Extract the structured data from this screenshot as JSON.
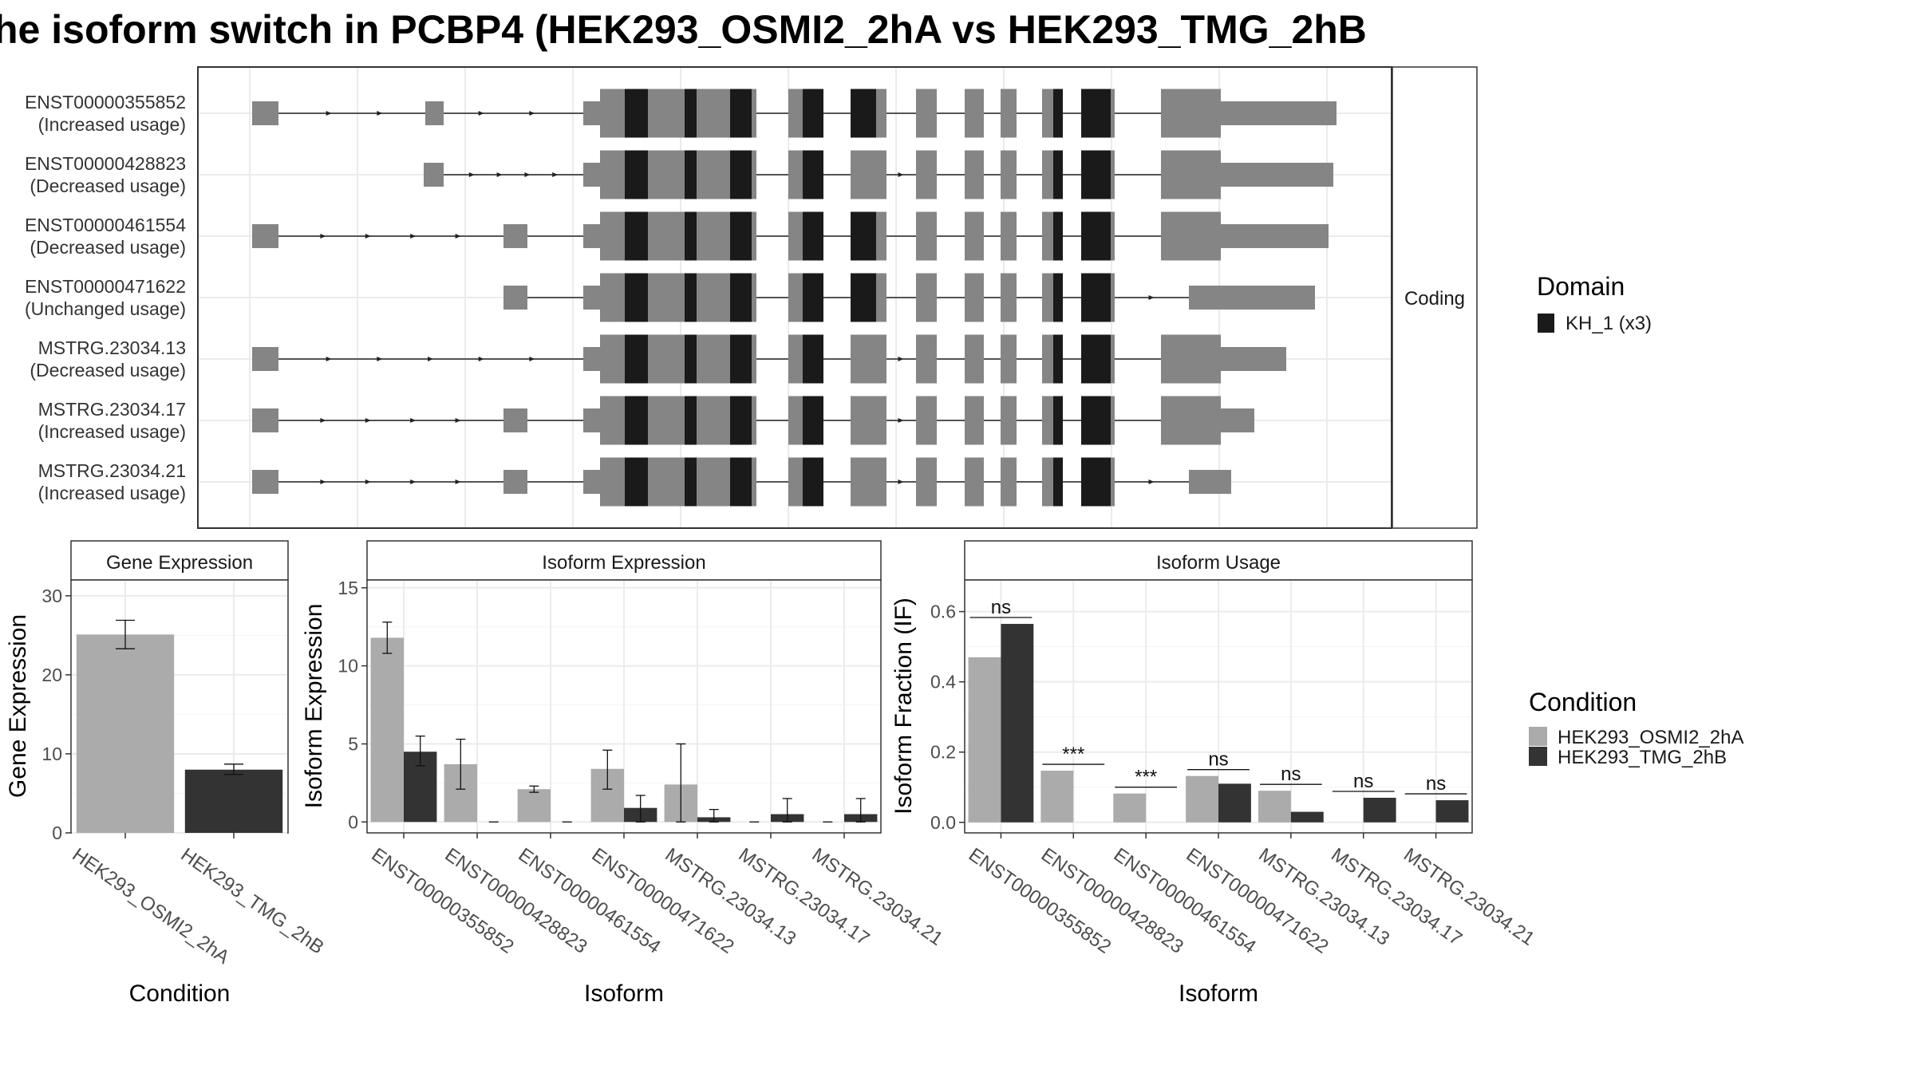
{
  "title": "he isoform switch in PCBP4 (HEK293_OSMI2_2hA vs HEK293_TMG_2hB",
  "colors": {
    "exon": "#858585",
    "domain": "#1a1a1a",
    "cond_a": "#ababab",
    "cond_b": "#333333",
    "grid": "#ebebeb",
    "strip": "#ffffff"
  },
  "structure": {
    "strip_label": "Coding",
    "transcripts": [
      {
        "id": "ENST00000355852",
        "note": "(Increased usage)"
      },
      {
        "id": "ENST00000428823",
        "note": "(Decreased usage)"
      },
      {
        "id": "ENST00000461554",
        "note": "(Decreased usage)"
      },
      {
        "id": "ENST00000471622",
        "note": "(Unchanged usage)"
      },
      {
        "id": "MSTRG.23034.13",
        "note": "(Decreased usage)"
      },
      {
        "id": "MSTRG.23034.17",
        "note": "(Increased usage)"
      },
      {
        "id": "MSTRG.23034.21",
        "note": "(Increased usage)"
      }
    ]
  },
  "domain_legend": {
    "title": "Domain",
    "entries": [
      "KH_1 (x3)"
    ]
  },
  "condition_legend": {
    "title": "Condition",
    "entries": [
      "HEK293_OSMI2_2hA",
      "HEK293_TMG_2hB"
    ]
  },
  "chart_data": [
    {
      "type": "bar",
      "title": "Gene Expression",
      "xlabel": "Condition",
      "ylabel": "Gene Expression",
      "categories": [
        "HEK293_OSMI2_2hA",
        "HEK293_TMG_2hB"
      ],
      "values": [
        25.1,
        8.0
      ],
      "errors": [
        [
          23.3,
          26.9
        ],
        [
          7.4,
          8.7
        ]
      ],
      "ylim": [
        0,
        32
      ],
      "yticks": [
        0,
        10,
        20,
        30
      ]
    },
    {
      "type": "bar",
      "title": "Isoform Expression",
      "xlabel": "Isoform",
      "ylabel": "Isoform Expression",
      "categories": [
        "ENST00000355852",
        "ENST00000428823",
        "ENST00000461554",
        "ENST00000471622",
        "MSTRG.23034.13",
        "MSTRG.23034.17",
        "MSTRG.23034.21"
      ],
      "series": [
        {
          "name": "HEK293_OSMI2_2hA",
          "values": [
            11.8,
            3.7,
            2.1,
            3.4,
            2.4,
            0.0,
            0.0
          ],
          "errors": [
            [
              10.8,
              12.8
            ],
            [
              2.1,
              5.3
            ],
            [
              1.9,
              2.3
            ],
            [
              2.1,
              4.6
            ],
            [
              0.0,
              5.0
            ],
            [
              0.0,
              0.0
            ],
            [
              0.0,
              0.0
            ]
          ]
        },
        {
          "name": "HEK293_TMG_2hB",
          "values": [
            4.5,
            0.0,
            0.0,
            0.9,
            0.3,
            0.5,
            0.5
          ],
          "errors": [
            [
              3.6,
              5.5
            ],
            [
              0.0,
              0.0
            ],
            [
              0.0,
              0.0
            ],
            [
              0.0,
              1.7
            ],
            [
              0.0,
              0.8
            ],
            [
              0.0,
              1.5
            ],
            [
              0.0,
              1.5
            ]
          ]
        }
      ],
      "ylim": [
        -0.7,
        15.5
      ],
      "yticks": [
        0,
        5,
        10,
        15
      ]
    },
    {
      "type": "bar",
      "title": "Isoform Usage",
      "xlabel": "Isoform",
      "ylabel": "Isoform Fraction (IF)",
      "categories": [
        "ENST00000355852",
        "ENST00000428823",
        "ENST00000461554",
        "ENST00000471622",
        "MSTRG.23034.13",
        "MSTRG.23034.17",
        "MSTRG.23034.21"
      ],
      "series": [
        {
          "name": "HEK293_OSMI2_2hA",
          "values": [
            0.47,
            0.147,
            0.082,
            0.132,
            0.09,
            0.0,
            0.0
          ]
        },
        {
          "name": "HEK293_TMG_2hB",
          "values": [
            0.565,
            0.0,
            0.0,
            0.11,
            0.03,
            0.07,
            0.063
          ]
        }
      ],
      "significance": [
        "ns",
        "***",
        "***",
        "ns",
        "ns",
        "ns",
        "ns"
      ],
      "ylim": [
        -0.03,
        0.69
      ],
      "yticks": [
        0.0,
        0.2,
        0.4,
        0.6
      ]
    }
  ]
}
